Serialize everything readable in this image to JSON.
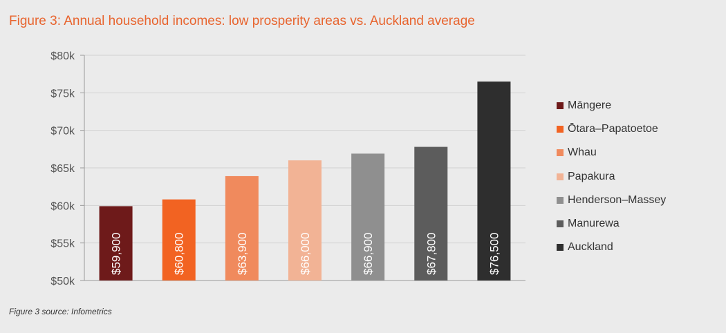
{
  "title": "Figure 3: Annual household incomes: low prosperity areas vs. Auckland average",
  "source": "Figure 3 source: Infometrics",
  "chart_data": {
    "type": "bar",
    "title": "Figure 3: Annual household incomes: low prosperity areas vs. Auckland average",
    "xlabel": "",
    "ylabel": "",
    "ylim": [
      50000,
      80000
    ],
    "yticks": [
      50000,
      55000,
      60000,
      65000,
      70000,
      75000,
      80000
    ],
    "ytick_labels": [
      "$50k",
      "$55k",
      "$60k",
      "$65k",
      "$70k",
      "$75k",
      "$80k"
    ],
    "grid": true,
    "legend_position": "right",
    "categories": [
      "Māngere",
      "Ōtara–Papatoetoe",
      "Whau",
      "Papakura",
      "Henderson–Massey",
      "Manurewa",
      "Auckland"
    ],
    "values": [
      59900,
      60800,
      63900,
      66000,
      66900,
      67800,
      76500
    ],
    "data_labels": [
      "$59,900",
      "$60,800",
      "$63,900",
      "$66,000",
      "$66,900",
      "$67,800",
      "$76,500"
    ],
    "colors": [
      "#6e1a1a",
      "#f26322",
      "#f08a5d",
      "#f2b395",
      "#8f8f8f",
      "#5c5c5c",
      "#2e2e2e"
    ]
  }
}
